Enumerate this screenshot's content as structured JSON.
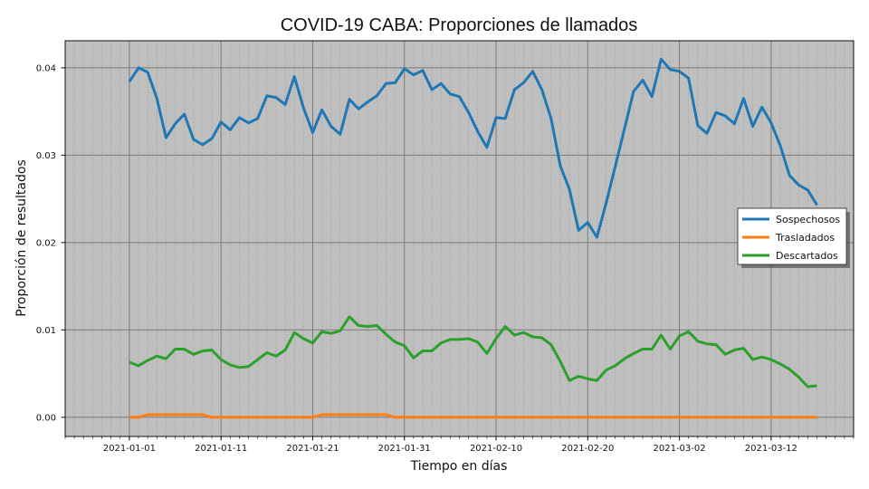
{
  "chart_data": {
    "type": "line",
    "title": "COVID-19 CABA: Proporciones de llamados",
    "xlabel": "Tiempo en días",
    "ylabel": "Proporción de resultados",
    "x_start": "2021-01-01",
    "x_step_days": 1,
    "xlim": [
      "2020-12-25",
      "2021-03-21"
    ],
    "ylim": [
      -0.0022,
      0.0431
    ],
    "x_ticks": [
      "2021-01-01",
      "2021-01-11",
      "2021-01-21",
      "2021-01-31",
      "2021-02-10",
      "2021-02-20",
      "2021-03-02",
      "2021-03-12"
    ],
    "y_ticks": [
      0.0,
      0.01,
      0.02,
      0.03,
      0.04
    ],
    "y_tick_labels": [
      "0.00",
      "0.01",
      "0.02",
      "0.03",
      "0.04"
    ],
    "grid": true,
    "background": "#bfbfbf",
    "legend_placement": "right",
    "series": [
      {
        "name": "Sospechosos",
        "color": "#1f77b4",
        "values": [
          0.0384,
          0.04,
          0.0395,
          0.0365,
          0.032,
          0.0336,
          0.0347,
          0.0318,
          0.0312,
          0.0319,
          0.0338,
          0.0329,
          0.0343,
          0.0337,
          0.0342,
          0.0368,
          0.0366,
          0.0358,
          0.039,
          0.0354,
          0.0326,
          0.0352,
          0.0333,
          0.0324,
          0.0364,
          0.0353,
          0.0361,
          0.0368,
          0.0382,
          0.0383,
          0.0399,
          0.0392,
          0.0397,
          0.0375,
          0.0382,
          0.037,
          0.0367,
          0.0349,
          0.0327,
          0.0309,
          0.0343,
          0.0342,
          0.0375,
          0.0383,
          0.0396,
          0.0375,
          0.0342,
          0.0288,
          0.0261,
          0.0214,
          0.0223,
          0.0206,
          0.0245,
          0.0287,
          0.033,
          0.0373,
          0.0386,
          0.0367,
          0.041,
          0.0398,
          0.0396,
          0.0388,
          0.0334,
          0.0325,
          0.0349,
          0.0345,
          0.0336,
          0.0365,
          0.0333,
          0.0355,
          0.0337,
          0.0311,
          0.0277,
          0.0266,
          0.026,
          0.0243
        ]
      },
      {
        "name": "Trasladados",
        "color": "#ff7f0e",
        "values": [
          0.0,
          0.0,
          0.0003,
          0.0003,
          0.0003,
          0.0003,
          0.0003,
          0.0003,
          0.0003,
          0.0,
          0.0,
          0.0,
          0.0,
          0.0,
          0.0,
          0.0,
          0.0,
          0.0,
          0.0,
          0.0,
          0.0,
          0.0003,
          0.0003,
          0.0003,
          0.0003,
          0.0003,
          0.0003,
          0.0003,
          0.0003,
          0.0,
          0.0,
          0.0,
          0.0,
          0.0,
          0.0,
          0.0,
          0.0,
          0.0,
          0.0,
          0.0,
          0.0,
          0.0,
          0.0,
          0.0,
          0.0,
          0.0,
          0.0,
          0.0,
          0.0,
          0.0,
          0.0,
          0.0,
          0.0,
          0.0,
          0.0,
          0.0,
          0.0,
          0.0,
          0.0,
          0.0,
          0.0,
          0.0,
          0.0,
          0.0,
          0.0,
          0.0,
          0.0,
          0.0,
          0.0,
          0.0,
          0.0,
          0.0,
          0.0,
          0.0,
          0.0,
          0.0
        ]
      },
      {
        "name": "Descartados",
        "color": "#2ca02c",
        "values": [
          0.0063,
          0.0059,
          0.0065,
          0.007,
          0.0067,
          0.0078,
          0.0078,
          0.0072,
          0.0076,
          0.0077,
          0.0066,
          0.006,
          0.0057,
          0.0058,
          0.0066,
          0.0074,
          0.007,
          0.0077,
          0.0097,
          0.009,
          0.0085,
          0.0098,
          0.0096,
          0.0099,
          0.0115,
          0.0105,
          0.0104,
          0.0105,
          0.0095,
          0.0086,
          0.0082,
          0.0068,
          0.0076,
          0.0076,
          0.0085,
          0.0089,
          0.0089,
          0.009,
          0.0086,
          0.0073,
          0.009,
          0.0104,
          0.0094,
          0.0097,
          0.0092,
          0.0091,
          0.0083,
          0.0064,
          0.0042,
          0.0047,
          0.0044,
          0.0042,
          0.0054,
          0.0059,
          0.0067,
          0.0073,
          0.0078,
          0.0078,
          0.0094,
          0.0078,
          0.0093,
          0.0098,
          0.0087,
          0.0084,
          0.0083,
          0.0072,
          0.0077,
          0.0079,
          0.0066,
          0.0069,
          0.0066,
          0.0061,
          0.0055,
          0.0046,
          0.0035,
          0.0036
        ]
      }
    ]
  }
}
